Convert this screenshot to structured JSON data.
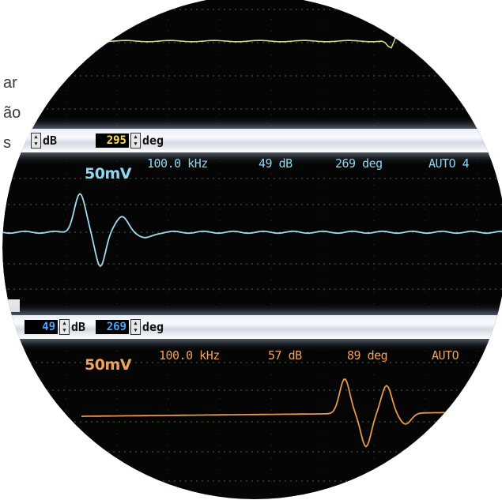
{
  "side_text": [
    "ar",
    "ão",
    "s"
  ],
  "scope": {
    "bar1": {
      "value": "295",
      "unit_left": "dB",
      "unit_right": "deg"
    },
    "bar2": {
      "value_left": "49",
      "value_right": "269",
      "unit_left": "dB",
      "unit_right": "deg"
    },
    "channel1": {
      "gain": "50mV",
      "frequency": "100.0 kHz",
      "db": "49 dB",
      "phase": "269 deg",
      "mode": "AUTO 4"
    },
    "channel2": {
      "gain": "50mV",
      "frequency": "100.0 kHz",
      "db": "57 dB",
      "phase": "89 deg",
      "mode": "AUTO"
    }
  },
  "colors": {
    "cyan_trace": "#9fdcef",
    "orange_trace": "#e39a4c",
    "yellow_trace": "#d8d28a",
    "grid": "#3f6d3f"
  }
}
